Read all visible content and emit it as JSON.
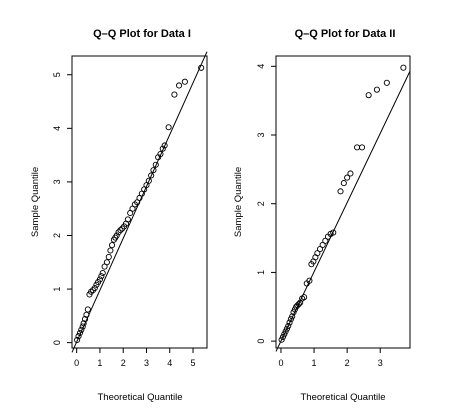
{
  "chart_data": [
    {
      "type": "scatter",
      "title": "Q–Q Plot for Data I",
      "xlabel": "Theoretical Quantile",
      "ylabel": "Sample Quantile",
      "xticks": [
        0,
        1,
        2,
        3,
        4,
        5
      ],
      "yticks": [
        0,
        1,
        2,
        3,
        4,
        5
      ],
      "xlim": [
        -0.2,
        5.6
      ],
      "ylim": [
        -0.1,
        5.35
      ],
      "reference_line": {
        "x": [
          -0.2,
          5.6
        ],
        "y": [
          -0.18,
          5.43
        ]
      },
      "points": [
        [
          0.02,
          0.05
        ],
        [
          0.08,
          0.12
        ],
        [
          0.14,
          0.18
        ],
        [
          0.2,
          0.24
        ],
        [
          0.26,
          0.3
        ],
        [
          0.3,
          0.36
        ],
        [
          0.36,
          0.44
        ],
        [
          0.42,
          0.52
        ],
        [
          0.48,
          0.62
        ],
        [
          0.55,
          0.9
        ],
        [
          0.62,
          0.95
        ],
        [
          0.7,
          0.98
        ],
        [
          0.78,
          1.02
        ],
        [
          0.85,
          1.08
        ],
        [
          0.92,
          1.13
        ],
        [
          1.0,
          1.18
        ],
        [
          1.06,
          1.24
        ],
        [
          1.12,
          1.3
        ],
        [
          1.2,
          1.42
        ],
        [
          1.3,
          1.5
        ],
        [
          1.38,
          1.6
        ],
        [
          1.45,
          1.72
        ],
        [
          1.52,
          1.82
        ],
        [
          1.6,
          1.92
        ],
        [
          1.66,
          1.96
        ],
        [
          1.72,
          2.0
        ],
        [
          1.8,
          2.06
        ],
        [
          1.88,
          2.1
        ],
        [
          1.96,
          2.13
        ],
        [
          2.04,
          2.17
        ],
        [
          2.12,
          2.22
        ],
        [
          2.2,
          2.3
        ],
        [
          2.3,
          2.42
        ],
        [
          2.4,
          2.5
        ],
        [
          2.5,
          2.58
        ],
        [
          2.6,
          2.62
        ],
        [
          2.7,
          2.7
        ],
        [
          2.8,
          2.78
        ],
        [
          2.9,
          2.86
        ],
        [
          3.0,
          2.94
        ],
        [
          3.1,
          3.02
        ],
        [
          3.2,
          3.12
        ],
        [
          3.3,
          3.22
        ],
        [
          3.4,
          3.32
        ],
        [
          3.5,
          3.46
        ],
        [
          3.6,
          3.52
        ],
        [
          3.7,
          3.62
        ],
        [
          3.78,
          3.68
        ],
        [
          3.95,
          4.02
        ],
        [
          4.2,
          4.63
        ],
        [
          4.4,
          4.8
        ],
        [
          4.65,
          4.87
        ],
        [
          5.35,
          5.13
        ]
      ]
    },
    {
      "type": "scatter",
      "title": "Q–Q Plot for Data II",
      "xlabel": "Theoretical Quantile",
      "ylabel": "Sample Quantile",
      "xticks": [
        0,
        1,
        2,
        3
      ],
      "yticks": [
        0,
        1,
        2,
        3,
        4
      ],
      "xlim": [
        -0.15,
        3.9
      ],
      "ylim": [
        -0.1,
        4.15
      ],
      "reference_line": {
        "x": [
          -0.15,
          3.9
        ],
        "y": [
          -0.15,
          3.93
        ]
      },
      "points": [
        [
          0.02,
          0.02
        ],
        [
          0.06,
          0.06
        ],
        [
          0.1,
          0.1
        ],
        [
          0.14,
          0.14
        ],
        [
          0.18,
          0.18
        ],
        [
          0.22,
          0.22
        ],
        [
          0.26,
          0.27
        ],
        [
          0.3,
          0.32
        ],
        [
          0.34,
          0.36
        ],
        [
          0.38,
          0.42
        ],
        [
          0.42,
          0.46
        ],
        [
          0.46,
          0.5
        ],
        [
          0.5,
          0.52
        ],
        [
          0.54,
          0.54
        ],
        [
          0.58,
          0.56
        ],
        [
          0.64,
          0.62
        ],
        [
          0.7,
          0.64
        ],
        [
          0.78,
          0.84
        ],
        [
          0.86,
          0.88
        ],
        [
          0.92,
          1.12
        ],
        [
          0.98,
          1.16
        ],
        [
          1.04,
          1.22
        ],
        [
          1.1,
          1.28
        ],
        [
          1.18,
          1.34
        ],
        [
          1.26,
          1.4
        ],
        [
          1.34,
          1.46
        ],
        [
          1.42,
          1.52
        ],
        [
          1.5,
          1.56
        ],
        [
          1.58,
          1.58
        ],
        [
          1.8,
          2.18
        ],
        [
          1.9,
          2.3
        ],
        [
          2.0,
          2.38
        ],
        [
          2.1,
          2.44
        ],
        [
          2.3,
          2.82
        ],
        [
          2.45,
          2.82
        ],
        [
          2.65,
          3.58
        ],
        [
          2.9,
          3.66
        ],
        [
          3.2,
          3.76
        ],
        [
          3.7,
          3.98
        ]
      ]
    }
  ]
}
